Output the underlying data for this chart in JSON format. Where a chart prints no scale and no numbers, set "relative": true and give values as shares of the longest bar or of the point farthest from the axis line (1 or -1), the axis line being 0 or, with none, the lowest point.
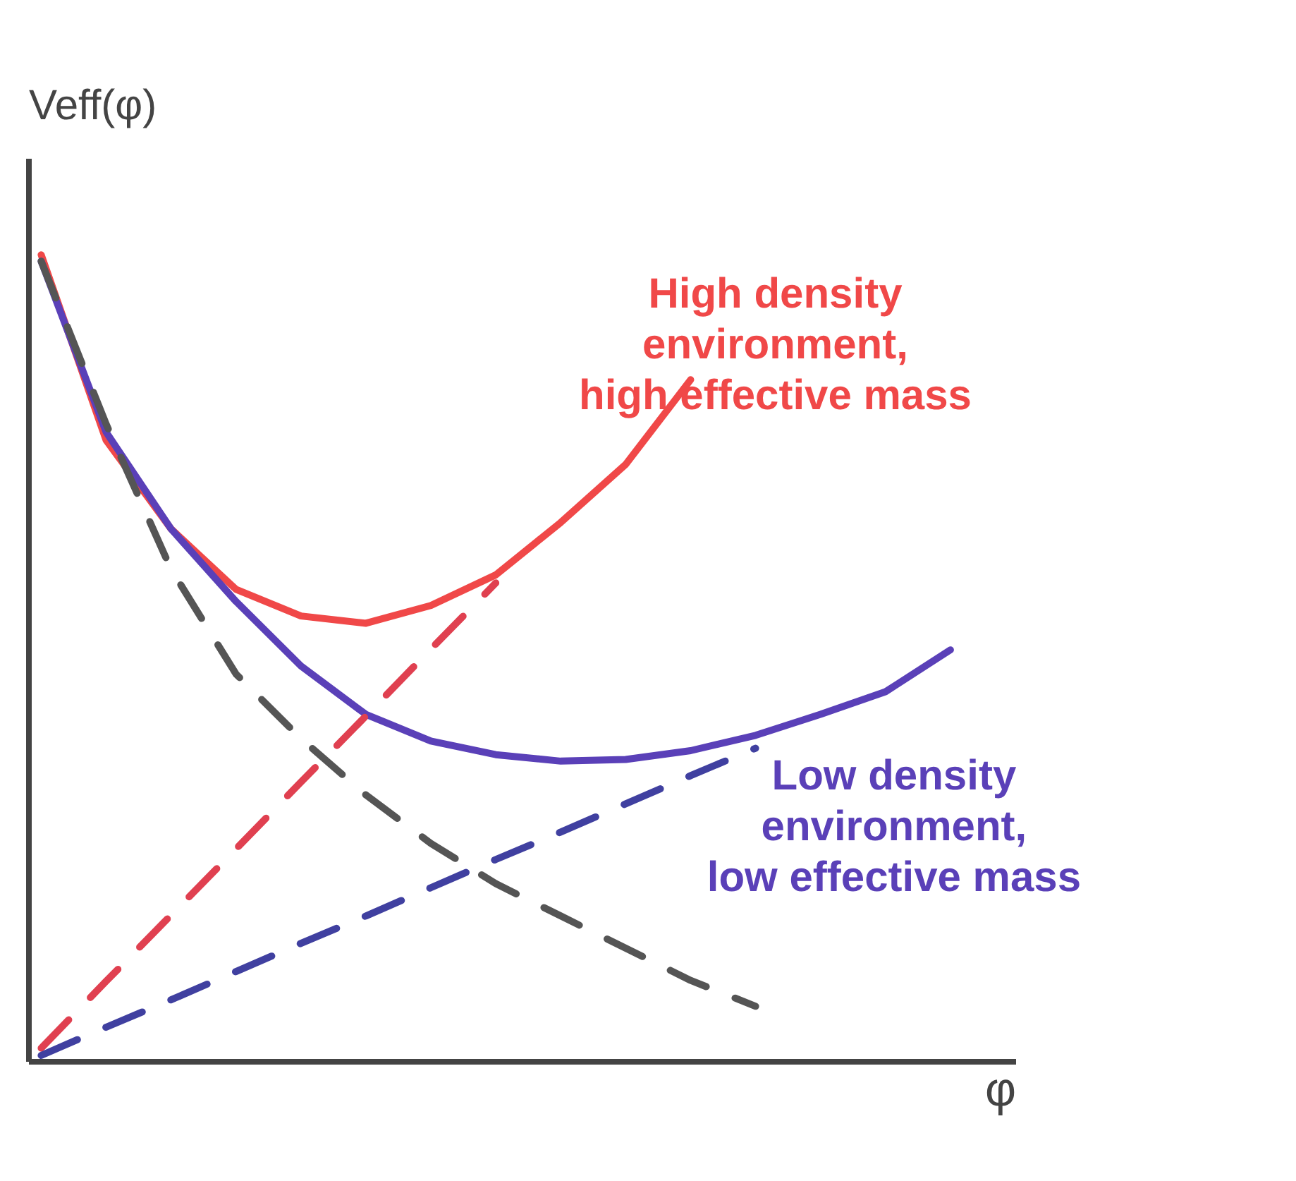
{
  "chart_data": {
    "type": "line",
    "relative": true,
    "xlabel": "φ",
    "ylabel": "Veff(φ)",
    "marker": "none",
    "categories": [
      null,
      null,
      null,
      null,
      null,
      null,
      null,
      null,
      null,
      null,
      null,
      null,
      null,
      null,
      null
    ],
    "series": [
      {
        "name": "High density environment, high effective mass",
        "color": "#f04848",
        "line_style": "solid",
        "values": [
          1.0,
          0.77,
          0.66,
          0.585,
          0.552,
          0.543,
          0.565,
          0.603,
          0.668,
          0.74,
          0.845,
          null,
          null,
          null,
          null
        ]
      },
      {
        "name": "Low density environment, low effective mass",
        "color": "#5a40b8",
        "line_style": "solid",
        "values": [
          0.992,
          0.78,
          0.66,
          0.57,
          0.49,
          0.43,
          0.397,
          0.38,
          0.372,
          0.374,
          0.385,
          0.404,
          0.43,
          0.458,
          0.51
        ]
      },
      {
        "color": "#555555",
        "line_style": "dashed",
        "values": [
          0.992,
          0.79,
          0.61,
          0.48,
          0.4,
          0.33,
          0.27,
          0.22,
          0.18,
          0.14,
          0.1,
          0.068,
          null,
          null,
          null
        ]
      },
      {
        "color": "#e04050",
        "line_style": "dashed",
        "values": [
          0.016,
          0.099,
          0.181,
          0.263,
          0.346,
          0.428,
          0.511,
          0.593,
          null,
          null,
          null,
          null,
          null,
          null,
          null
        ]
      },
      {
        "color": "#4040a0",
        "line_style": "dashed",
        "values": [
          0.007,
          0.042,
          0.076,
          0.111,
          0.146,
          0.18,
          0.215,
          0.25,
          0.284,
          0.319,
          0.354,
          0.388,
          null,
          null,
          null
        ]
      }
    ]
  }
}
